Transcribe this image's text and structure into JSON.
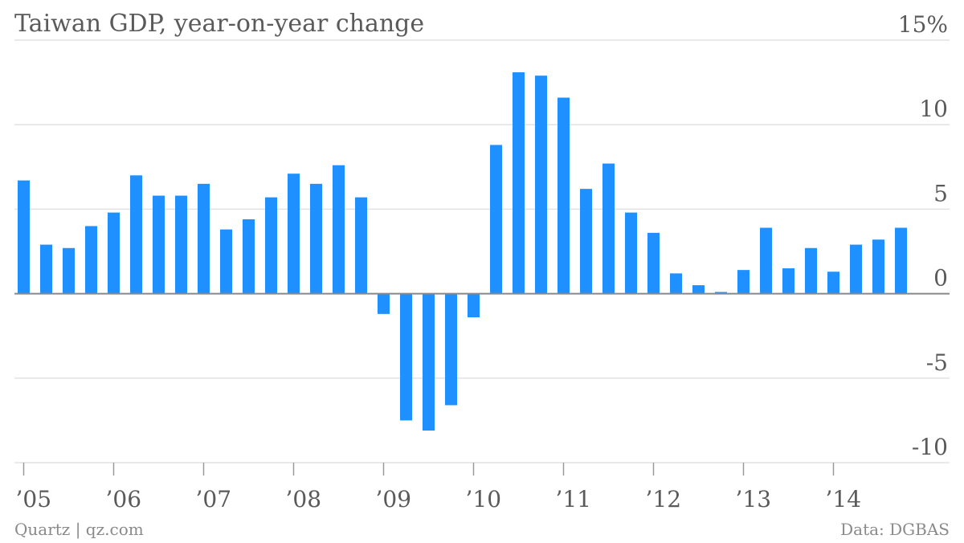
{
  "chart_data": {
    "type": "bar",
    "title": "Taiwan GDP, year-on-year change",
    "source_left": "Quartz | qz.com",
    "source_right": "Data: DGBAS",
    "ylim": [
      -10,
      15
    ],
    "yticks": [
      {
        "value": 15,
        "label": "15%"
      },
      {
        "value": 10,
        "label": "10"
      },
      {
        "value": 5,
        "label": "5"
      },
      {
        "value": 0,
        "label": "0"
      },
      {
        "value": -5,
        "label": "-5"
      },
      {
        "value": -10,
        "label": "-10"
      }
    ],
    "xticks": [
      {
        "year": 2005,
        "label": "’05"
      },
      {
        "year": 2006,
        "label": "’06"
      },
      {
        "year": 2007,
        "label": "’07"
      },
      {
        "year": 2008,
        "label": "’08"
      },
      {
        "year": 2009,
        "label": "’09"
      },
      {
        "year": 2010,
        "label": "’10"
      },
      {
        "year": 2011,
        "label": "’11"
      },
      {
        "year": 2012,
        "label": "’12"
      },
      {
        "year": 2013,
        "label": "’13"
      },
      {
        "year": 2014,
        "label": "’14"
      }
    ],
    "grid": true,
    "bar_color": "#1f90ff",
    "categories": [
      "2005 Q1",
      "2005 Q2",
      "2005 Q3",
      "2005 Q4",
      "2006 Q1",
      "2006 Q2",
      "2006 Q3",
      "2006 Q4",
      "2007 Q1",
      "2007 Q2",
      "2007 Q3",
      "2007 Q4",
      "2008 Q1",
      "2008 Q2",
      "2008 Q3",
      "2008 Q4",
      "2009 Q1",
      "2009 Q2",
      "2009 Q3",
      "2009 Q4",
      "2010 Q1",
      "2010 Q2",
      "2010 Q3",
      "2010 Q4",
      "2011 Q1",
      "2011 Q2",
      "2011 Q3",
      "2011 Q4",
      "2012 Q1",
      "2012 Q2",
      "2012 Q3",
      "2012 Q4",
      "2013 Q1",
      "2013 Q2",
      "2013 Q3",
      "2013 Q4",
      "2014 Q1",
      "2014 Q2",
      "2014 Q3",
      "2014 Q4"
    ],
    "values": [
      6.7,
      2.9,
      2.7,
      4.0,
      4.8,
      7.0,
      5.8,
      5.8,
      6.5,
      3.8,
      4.4,
      5.7,
      7.1,
      6.5,
      7.6,
      5.7,
      -1.2,
      -7.5,
      -8.1,
      -6.6,
      -1.4,
      8.8,
      13.1,
      12.9,
      11.6,
      6.2,
      7.7,
      4.8,
      3.6,
      1.2,
      0.5,
      0.1,
      1.4,
      3.9,
      1.5,
      2.7,
      1.3,
      2.9,
      3.2,
      3.9
    ]
  }
}
